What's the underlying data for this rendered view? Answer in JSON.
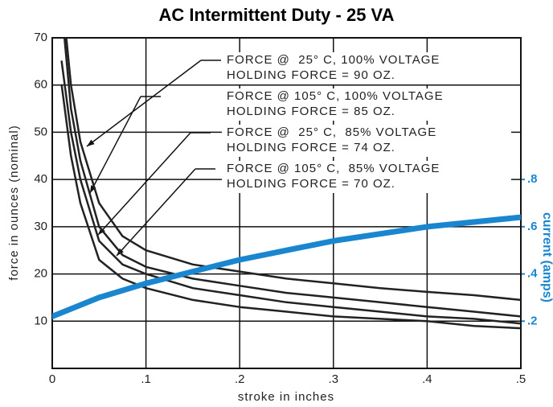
{
  "chart_data": {
    "type": "line",
    "title": "AC Intermittent Duty - 25 VA",
    "xlabel": "stroke in inches",
    "ylabel": "force in ounces (nominal)",
    "y2label": "current (amps)",
    "xlim": [
      0,
      0.5
    ],
    "xticks": [
      0,
      {
        "value": 0.1,
        "label": ".1"
      },
      {
        "value": 0.2,
        "label": ".2"
      },
      {
        "value": 0.3,
        "label": ".3"
      },
      {
        "value": 0.4,
        "label": ".4"
      },
      {
        "value": 0.5,
        "label": ".5"
      }
    ],
    "ylim": [
      0,
      70
    ],
    "yticks": [
      10,
      20,
      30,
      40,
      50,
      60,
      70
    ],
    "y2lim": [
      0,
      1.4
    ],
    "y2ticks": [
      {
        "value": 0.2,
        "label": ".2"
      },
      {
        "value": 0.4,
        "label": ".4"
      },
      {
        "value": 0.6,
        "label": ".6"
      },
      {
        "value": 0.8,
        "label": ".8"
      }
    ],
    "grid": true,
    "series": [
      {
        "name": "FORCE @  25° C, 100% VOLTAGE",
        "note": "HOLDING FORCE = 90 OZ.",
        "color": "#222222",
        "x": [
          0.015,
          0.02,
          0.03,
          0.05,
          0.075,
          0.1,
          0.15,
          0.2,
          0.25,
          0.3,
          0.35,
          0.4,
          0.45,
          0.5
        ],
        "values": [
          70,
          60,
          48,
          35,
          28,
          25,
          22,
          20.5,
          19,
          18,
          17,
          16.2,
          15.5,
          14.5
        ]
      },
      {
        "name": "FORCE @ 105° C, 100% VOLTAGE",
        "note": "HOLDING FORCE = 85 OZ.",
        "color": "#222222",
        "x": [
          0.013,
          0.02,
          0.03,
          0.05,
          0.075,
          0.1,
          0.15,
          0.2,
          0.25,
          0.3,
          0.35,
          0.4,
          0.45,
          0.5
        ],
        "values": [
          70,
          55,
          44,
          30,
          24,
          21.5,
          19,
          17.5,
          16,
          15,
          14,
          13,
          12,
          11
        ]
      },
      {
        "name": "FORCE @  25° C,  85% VOLTAGE",
        "note": "HOLDING FORCE = 74 OZ.",
        "color": "#222222",
        "x": [
          0.01,
          0.02,
          0.03,
          0.05,
          0.075,
          0.1,
          0.15,
          0.2,
          0.25,
          0.3,
          0.35,
          0.4,
          0.45,
          0.5
        ],
        "values": [
          65,
          50,
          40,
          27,
          22,
          20,
          17,
          15.5,
          14,
          13,
          12,
          11,
          10.5,
          9.5
        ]
      },
      {
        "name": "FORCE @ 105° C,  85% VOLTAGE",
        "note": "HOLDING FORCE = 70 OZ.",
        "color": "#222222",
        "x": [
          0.01,
          0.02,
          0.03,
          0.05,
          0.075,
          0.1,
          0.15,
          0.2,
          0.25,
          0.3,
          0.35,
          0.4,
          0.45,
          0.5
        ],
        "values": [
          60,
          45,
          35,
          23,
          19,
          17,
          14.5,
          13,
          12,
          11,
          10.5,
          10,
          9,
          8.5
        ]
      },
      {
        "axis": "y2",
        "color": "#1a86d0",
        "x": [
          0,
          0.05,
          0.1,
          0.15,
          0.2,
          0.25,
          0.3,
          0.35,
          0.4,
          0.45,
          0.5
        ],
        "values": [
          0.22,
          0.3,
          0.36,
          0.41,
          0.46,
          0.5,
          0.54,
          0.57,
          0.6,
          0.62,
          0.64
        ]
      }
    ]
  }
}
